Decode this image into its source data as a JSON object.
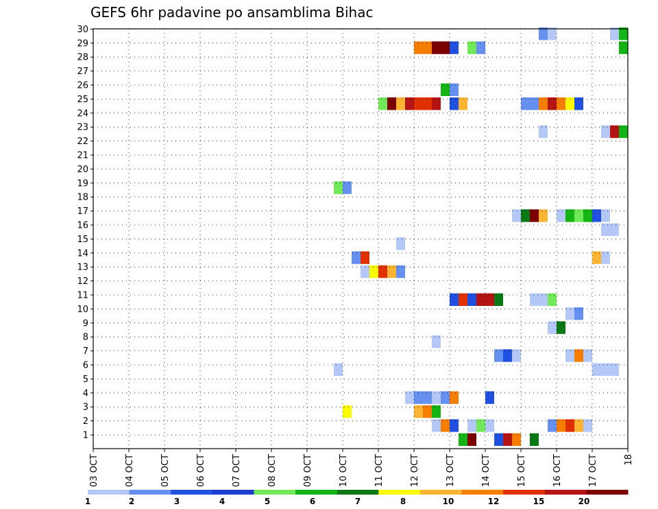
{
  "chart_data": {
    "type": "heatmap",
    "title": "GEFS 6hr padavine po ansamblima Bihac",
    "x_tick_labels": [
      "03 OCT",
      "04 OCT",
      "05 OCT",
      "06 OCT",
      "07 OCT",
      "08 OCT",
      "09 OCT",
      "10 OCT",
      "11 OCT",
      "12 OCT",
      "13 OCT",
      "14 OCT",
      "15 OCT",
      "16 OCT",
      "17 OCT",
      "18"
    ],
    "x_range_days": [
      0,
      15
    ],
    "y_range": [
      0,
      30
    ],
    "y_tick_labels": [
      "1",
      "2",
      "3",
      "4",
      "5",
      "6",
      "7",
      "8",
      "9",
      "10",
      "11",
      "12",
      "13",
      "14",
      "15",
      "16",
      "17",
      "18",
      "19",
      "20",
      "21",
      "22",
      "23",
      "24",
      "25",
      "26",
      "27",
      "28",
      "29",
      "30"
    ],
    "grid": true,
    "colorbar": {
      "levels": [
        {
          "color": "#b4c8f8",
          "label": "1"
        },
        {
          "color": "#6690f0",
          "label": ""
        },
        {
          "color": "#2050e0",
          "label": "2"
        },
        {
          "color": "#1a3cd0",
          "label": ""
        },
        {
          "color": "#70e858",
          "label": "3"
        },
        {
          "color": "#14b414",
          "label": ""
        },
        {
          "color": "#0a7814",
          "label": "4"
        },
        {
          "color": "#fafa00",
          "label": ""
        },
        {
          "color": "#fab432",
          "label": "5"
        },
        {
          "color": "#f57d00",
          "label": ""
        },
        {
          "color": "#e03000",
          "label": "6"
        },
        {
          "color": "#b41414",
          "label": ""
        },
        {
          "color": "#7d0000",
          "label": "7"
        }
      ],
      "tick_labels": [
        "1",
        "2",
        "3",
        "4",
        "5",
        "6",
        "7",
        "8",
        "10",
        "12",
        "15",
        "20"
      ]
    },
    "cells": [
      {
        "start": 10.25,
        "end": 10.5,
        "row": 0,
        "color": "#14b414"
      },
      {
        "start": 10.5,
        "end": 10.75,
        "row": 0,
        "color": "#7d0000"
      },
      {
        "start": 11.25,
        "end": 11.5,
        "row": 0,
        "color": "#2050e0"
      },
      {
        "start": 11.5,
        "end": 11.75,
        "row": 0,
        "color": "#b41414"
      },
      {
        "start": 11.75,
        "end": 12.0,
        "row": 0,
        "color": "#f57d00"
      },
      {
        "start": 12.25,
        "end": 12.5,
        "row": 0,
        "color": "#0a7814"
      },
      {
        "start": 9.5,
        "end": 9.75,
        "row": 1,
        "color": "#b4c8f8"
      },
      {
        "start": 9.75,
        "end": 10.0,
        "row": 1,
        "color": "#f57d00"
      },
      {
        "start": 10.0,
        "end": 10.25,
        "row": 1,
        "color": "#2050e0"
      },
      {
        "start": 10.5,
        "end": 10.75,
        "row": 1,
        "color": "#b4c8f8"
      },
      {
        "start": 10.75,
        "end": 11.0,
        "row": 1,
        "color": "#70e858"
      },
      {
        "start": 11.0,
        "end": 11.25,
        "row": 1,
        "color": "#b4c8f8"
      },
      {
        "start": 12.75,
        "end": 13.0,
        "row": 1,
        "color": "#6690f0"
      },
      {
        "start": 13.0,
        "end": 13.25,
        "row": 1,
        "color": "#f57d00"
      },
      {
        "start": 13.25,
        "end": 13.5,
        "row": 1,
        "color": "#e03000"
      },
      {
        "start": 13.5,
        "end": 13.75,
        "row": 1,
        "color": "#fab432"
      },
      {
        "start": 13.75,
        "end": 14.0,
        "row": 1,
        "color": "#b4c8f8"
      },
      {
        "start": 7.0,
        "end": 7.25,
        "row": 2,
        "color": "#fafa00"
      },
      {
        "start": 9.0,
        "end": 9.25,
        "row": 2,
        "color": "#fab432"
      },
      {
        "start": 9.25,
        "end": 9.5,
        "row": 2,
        "color": "#f57d00"
      },
      {
        "start": 9.5,
        "end": 9.75,
        "row": 2,
        "color": "#14b414"
      },
      {
        "start": 8.75,
        "end": 9.0,
        "row": 3,
        "color": "#b4c8f8"
      },
      {
        "start": 9.0,
        "end": 9.5,
        "row": 3,
        "color": "#6690f0"
      },
      {
        "start": 9.5,
        "end": 9.75,
        "row": 3,
        "color": "#b4c8f8"
      },
      {
        "start": 9.75,
        "end": 10.0,
        "row": 3,
        "color": "#6690f0"
      },
      {
        "start": 10.0,
        "end": 10.25,
        "row": 3,
        "color": "#f57d00"
      },
      {
        "start": 11.0,
        "end": 11.25,
        "row": 3,
        "color": "#2050e0"
      },
      {
        "start": 6.75,
        "end": 7.0,
        "row": 5,
        "color": "#b4c8f8"
      },
      {
        "start": 14.0,
        "end": 14.75,
        "row": 5,
        "color": "#b4c8f8"
      },
      {
        "start": 11.25,
        "end": 11.5,
        "row": 6,
        "color": "#6690f0"
      },
      {
        "start": 11.5,
        "end": 11.75,
        "row": 6,
        "color": "#2050e0"
      },
      {
        "start": 11.75,
        "end": 12.0,
        "row": 6,
        "color": "#b4c8f8"
      },
      {
        "start": 13.25,
        "end": 13.5,
        "row": 6,
        "color": "#b4c8f8"
      },
      {
        "start": 13.5,
        "end": 13.75,
        "row": 6,
        "color": "#f57d00"
      },
      {
        "start": 13.75,
        "end": 14.0,
        "row": 6,
        "color": "#b4c8f8"
      },
      {
        "start": 9.5,
        "end": 9.75,
        "row": 7,
        "color": "#b4c8f8"
      },
      {
        "start": 12.75,
        "end": 13.0,
        "row": 8,
        "color": "#b4c8f8"
      },
      {
        "start": 13.0,
        "end": 13.25,
        "row": 8,
        "color": "#0a7814"
      },
      {
        "start": 13.25,
        "end": 13.5,
        "row": 9,
        "color": "#b4c8f8"
      },
      {
        "start": 13.5,
        "end": 13.75,
        "row": 9,
        "color": "#6690f0"
      },
      {
        "start": 10.0,
        "end": 10.25,
        "row": 10,
        "color": "#2050e0"
      },
      {
        "start": 10.25,
        "end": 10.5,
        "row": 10,
        "color": "#e03000"
      },
      {
        "start": 10.5,
        "end": 10.75,
        "row": 10,
        "color": "#2050e0"
      },
      {
        "start": 10.75,
        "end": 11.25,
        "row": 10,
        "color": "#b41414"
      },
      {
        "start": 11.25,
        "end": 11.5,
        "row": 10,
        "color": "#0a7814"
      },
      {
        "start": 12.25,
        "end": 12.75,
        "row": 10,
        "color": "#b4c8f8"
      },
      {
        "start": 12.75,
        "end": 13.0,
        "row": 10,
        "color": "#70e858"
      },
      {
        "start": 7.5,
        "end": 7.75,
        "row": 12,
        "color": "#b4c8f8"
      },
      {
        "start": 7.75,
        "end": 8.0,
        "row": 12,
        "color": "#fafa00"
      },
      {
        "start": 8.0,
        "end": 8.25,
        "row": 12,
        "color": "#e03000"
      },
      {
        "start": 8.25,
        "end": 8.5,
        "row": 12,
        "color": "#fab432"
      },
      {
        "start": 8.5,
        "end": 8.75,
        "row": 12,
        "color": "#6690f0"
      },
      {
        "start": 7.25,
        "end": 7.5,
        "row": 13,
        "color": "#6690f0"
      },
      {
        "start": 7.5,
        "end": 7.75,
        "row": 13,
        "color": "#e03000"
      },
      {
        "start": 14.0,
        "end": 14.25,
        "row": 13,
        "color": "#fab432"
      },
      {
        "start": 14.25,
        "end": 14.5,
        "row": 13,
        "color": "#b4c8f8"
      },
      {
        "start": 8.5,
        "end": 8.75,
        "row": 14,
        "color": "#b4c8f8"
      },
      {
        "start": 14.25,
        "end": 14.75,
        "row": 15,
        "color": "#b4c8f8"
      },
      {
        "start": 11.75,
        "end": 12.0,
        "row": 16,
        "color": "#b4c8f8"
      },
      {
        "start": 12.0,
        "end": 12.25,
        "row": 16,
        "color": "#0a7814"
      },
      {
        "start": 12.25,
        "end": 12.5,
        "row": 16,
        "color": "#7d0000"
      },
      {
        "start": 12.5,
        "end": 12.75,
        "row": 16,
        "color": "#fab432"
      },
      {
        "start": 13.0,
        "end": 13.25,
        "row": 16,
        "color": "#b4c8f8"
      },
      {
        "start": 13.25,
        "end": 13.5,
        "row": 16,
        "color": "#14b414"
      },
      {
        "start": 13.5,
        "end": 13.75,
        "row": 16,
        "color": "#70e858"
      },
      {
        "start": 13.75,
        "end": 14.0,
        "row": 16,
        "color": "#14b414"
      },
      {
        "start": 14.0,
        "end": 14.25,
        "row": 16,
        "color": "#2050e0"
      },
      {
        "start": 14.25,
        "end": 14.5,
        "row": 16,
        "color": "#b4c8f8"
      },
      {
        "start": 6.75,
        "end": 7.0,
        "row": 18,
        "color": "#70e858"
      },
      {
        "start": 7.0,
        "end": 7.25,
        "row": 18,
        "color": "#6690f0"
      },
      {
        "start": 12.5,
        "end": 12.75,
        "row": 22,
        "color": "#b4c8f8"
      },
      {
        "start": 14.25,
        "end": 14.5,
        "row": 22,
        "color": "#b4c8f8"
      },
      {
        "start": 14.5,
        "end": 14.75,
        "row": 22,
        "color": "#b41414"
      },
      {
        "start": 14.75,
        "end": 15.0,
        "row": 22,
        "color": "#14b414"
      },
      {
        "start": 8.0,
        "end": 8.25,
        "row": 24,
        "color": "#70e858"
      },
      {
        "start": 8.25,
        "end": 8.5,
        "row": 24,
        "color": "#7d0000"
      },
      {
        "start": 8.5,
        "end": 8.75,
        "row": 24,
        "color": "#fab432"
      },
      {
        "start": 8.75,
        "end": 9.0,
        "row": 24,
        "color": "#b41414"
      },
      {
        "start": 9.0,
        "end": 9.25,
        "row": 24,
        "color": "#e03000"
      },
      {
        "start": 9.25,
        "end": 9.5,
        "row": 24,
        "color": "#e03000"
      },
      {
        "start": 9.5,
        "end": 9.75,
        "row": 24,
        "color": "#b41414"
      },
      {
        "start": 10.0,
        "end": 10.25,
        "row": 24,
        "color": "#2050e0"
      },
      {
        "start": 10.25,
        "end": 10.5,
        "row": 24,
        "color": "#fab432"
      },
      {
        "start": 12.0,
        "end": 12.5,
        "row": 24,
        "color": "#6690f0"
      },
      {
        "start": 12.5,
        "end": 12.75,
        "row": 24,
        "color": "#f57d00"
      },
      {
        "start": 12.75,
        "end": 13.0,
        "row": 24,
        "color": "#b41414"
      },
      {
        "start": 13.0,
        "end": 13.25,
        "row": 24,
        "color": "#f57d00"
      },
      {
        "start": 13.25,
        "end": 13.5,
        "row": 24,
        "color": "#fafa00"
      },
      {
        "start": 13.5,
        "end": 13.75,
        "row": 24,
        "color": "#2050e0"
      },
      {
        "start": 9.75,
        "end": 10.0,
        "row": 25,
        "color": "#14b414"
      },
      {
        "start": 10.0,
        "end": 10.25,
        "row": 25,
        "color": "#6690f0"
      },
      {
        "start": 9.0,
        "end": 9.5,
        "row": 28,
        "color": "#f57d00"
      },
      {
        "start": 9.5,
        "end": 10.0,
        "row": 28,
        "color": "#7d0000"
      },
      {
        "start": 10.0,
        "end": 10.25,
        "row": 28,
        "color": "#2050e0"
      },
      {
        "start": 10.5,
        "end": 10.75,
        "row": 28,
        "color": "#70e858"
      },
      {
        "start": 10.75,
        "end": 11.0,
        "row": 28,
        "color": "#6690f0"
      },
      {
        "start": 14.75,
        "end": 15.0,
        "row": 28,
        "color": "#14b414"
      },
      {
        "start": 12.5,
        "end": 12.75,
        "row": 29,
        "color": "#6690f0"
      },
      {
        "start": 12.75,
        "end": 13.0,
        "row": 29,
        "color": "#b4c8f8"
      },
      {
        "start": 14.5,
        "end": 14.75,
        "row": 29,
        "color": "#b4c8f8"
      },
      {
        "start": 14.75,
        "end": 15.0,
        "row": 29,
        "color": "#14b414"
      }
    ]
  }
}
